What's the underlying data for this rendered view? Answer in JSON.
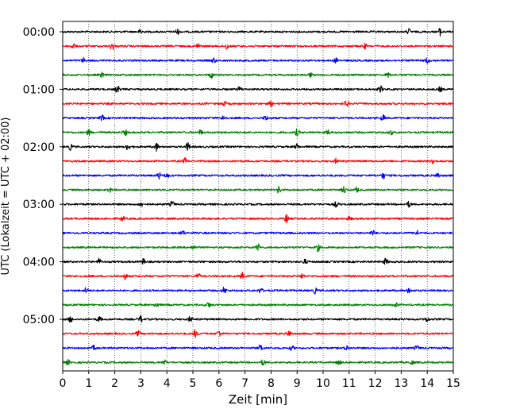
{
  "chart_data": {
    "type": "line",
    "title": "",
    "xlabel": "Zeit  [min]",
    "ylabel": "UTC (Lokalzeit = UTC + 02:00)",
    "xlim": [
      0,
      15
    ],
    "x_ticks": [
      0,
      1,
      2,
      3,
      4,
      5,
      6,
      7,
      8,
      9,
      10,
      11,
      12,
      13,
      14,
      15
    ],
    "x_tick_labels": [
      "0",
      "1",
      "2",
      "3",
      "4",
      "5",
      "6",
      "7",
      "8",
      "9",
      "10",
      "11",
      "12",
      "13",
      "14",
      "15"
    ],
    "y_tick_labels": [
      "00:00",
      "01:00",
      "02:00",
      "03:00",
      "04:00",
      "05:00"
    ],
    "grid": "vertical-dotted",
    "trace_minutes": 15,
    "traces_per_hour": 4,
    "trace_colors": [
      "#000000",
      "#ff0000",
      "#0000ff",
      "#008000"
    ],
    "traces": [
      {
        "start": "00:00",
        "bursts": [
          [
            3.0,
            1.6
          ],
          [
            4.4,
            1.4
          ],
          [
            13.3,
            1.5
          ],
          [
            14.5,
            2.0
          ]
        ]
      },
      {
        "start": "00:15",
        "bursts": [
          [
            0.4,
            1.6
          ],
          [
            1.9,
            2.2
          ],
          [
            5.2,
            1.5
          ],
          [
            6.3,
            1.8
          ],
          [
            11.6,
            1.3
          ]
        ]
      },
      {
        "start": "00:30",
        "bursts": [
          [
            0.8,
            1.2
          ],
          [
            5.8,
            1.3
          ],
          [
            10.5,
            1.3
          ],
          [
            14.0,
            1.6
          ]
        ]
      },
      {
        "start": "00:45",
        "bursts": [
          [
            1.5,
            1.3
          ],
          [
            5.7,
            1.8
          ],
          [
            9.5,
            1.4
          ],
          [
            12.5,
            1.3
          ]
        ]
      },
      {
        "start": "01:00",
        "bursts": [
          [
            2.1,
            2.2
          ],
          [
            6.8,
            1.4
          ],
          [
            12.2,
            1.8
          ],
          [
            14.5,
            1.3
          ]
        ]
      },
      {
        "start": "01:15",
        "bursts": [
          [
            6.2,
            1.3
          ],
          [
            8.0,
            1.3
          ],
          [
            10.9,
            1.8
          ]
        ]
      },
      {
        "start": "01:30",
        "bursts": [
          [
            1.5,
            1.6
          ],
          [
            6.2,
            1.7
          ],
          [
            7.8,
            1.4
          ],
          [
            12.3,
            1.7
          ]
        ]
      },
      {
        "start": "01:45",
        "bursts": [
          [
            1.0,
            1.5
          ],
          [
            2.4,
            1.6
          ],
          [
            5.3,
            1.4
          ],
          [
            9.0,
            1.8
          ],
          [
            10.2,
            1.3
          ],
          [
            12.6,
            1.3
          ]
        ]
      },
      {
        "start": "02:00",
        "bursts": [
          [
            0.3,
            1.6
          ],
          [
            2.5,
            1.8
          ],
          [
            3.6,
            2.2
          ],
          [
            4.8,
            2.2
          ],
          [
            9.0,
            1.5
          ]
        ]
      },
      {
        "start": "02:15",
        "bursts": [
          [
            4.7,
            1.5
          ],
          [
            10.5,
            1.3
          ],
          [
            14.2,
            1.6
          ]
        ]
      },
      {
        "start": "02:30",
        "bursts": [
          [
            3.7,
            1.7
          ],
          [
            4.0,
            1.4
          ],
          [
            12.3,
            1.7
          ],
          [
            14.4,
            1.4
          ]
        ]
      },
      {
        "start": "02:45",
        "bursts": [
          [
            1.8,
            1.3
          ],
          [
            8.3,
            2.0
          ],
          [
            10.8,
            2.0
          ],
          [
            11.3,
            1.3
          ]
        ]
      },
      {
        "start": "03:00",
        "bursts": [
          [
            3.0,
            1.4
          ],
          [
            4.2,
            1.8
          ],
          [
            10.5,
            1.4
          ],
          [
            13.3,
            1.5
          ]
        ]
      },
      {
        "start": "03:15",
        "bursts": [
          [
            2.3,
            1.3
          ],
          [
            8.6,
            2.4
          ],
          [
            11.0,
            1.3
          ]
        ]
      },
      {
        "start": "03:30",
        "bursts": [
          [
            4.6,
            1.3
          ],
          [
            11.9,
            1.5
          ],
          [
            13.6,
            1.4
          ]
        ]
      },
      {
        "start": "03:45",
        "bursts": [
          [
            5.0,
            1.3
          ],
          [
            7.5,
            1.8
          ],
          [
            9.8,
            2.0
          ]
        ]
      },
      {
        "start": "04:00",
        "bursts": [
          [
            1.4,
            1.6
          ],
          [
            3.1,
            1.5
          ],
          [
            9.3,
            1.4
          ],
          [
            12.4,
            1.8
          ]
        ]
      },
      {
        "start": "04:15",
        "bursts": [
          [
            2.4,
            1.6
          ],
          [
            5.2,
            1.7
          ],
          [
            6.9,
            1.7
          ],
          [
            9.2,
            1.5
          ]
        ]
      },
      {
        "start": "04:30",
        "bursts": [
          [
            0.9,
            1.5
          ],
          [
            6.2,
            1.8
          ],
          [
            7.6,
            1.5
          ],
          [
            9.7,
            1.5
          ],
          [
            13.3,
            1.5
          ]
        ]
      },
      {
        "start": "04:45",
        "bursts": [
          [
            3.6,
            1.4
          ],
          [
            5.6,
            1.5
          ],
          [
            12.8,
            1.3
          ]
        ]
      },
      {
        "start": "05:00",
        "bursts": [
          [
            0.3,
            1.7
          ],
          [
            1.4,
            1.5
          ],
          [
            3.0,
            1.7
          ],
          [
            4.9,
            1.6
          ],
          [
            14.0,
            1.4
          ]
        ]
      },
      {
        "start": "05:15",
        "bursts": [
          [
            2.9,
            1.4
          ],
          [
            5.1,
            2.2
          ],
          [
            6.0,
            1.8
          ],
          [
            8.7,
            1.5
          ]
        ]
      },
      {
        "start": "05:30",
        "bursts": [
          [
            1.2,
            1.3
          ],
          [
            7.6,
            1.8
          ],
          [
            8.8,
            1.3
          ],
          [
            10.9,
            1.4
          ],
          [
            13.6,
            1.3
          ]
        ]
      },
      {
        "start": "05:45",
        "bursts": [
          [
            0.2,
            1.3
          ],
          [
            3.9,
            1.3
          ],
          [
            7.7,
            1.6
          ],
          [
            10.6,
            1.4
          ],
          [
            13.4,
            1.3
          ]
        ]
      }
    ]
  }
}
